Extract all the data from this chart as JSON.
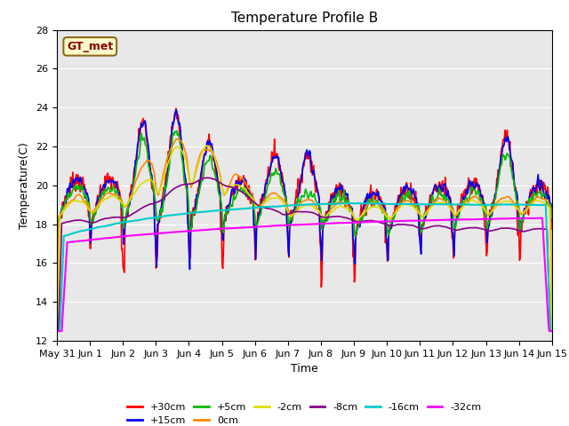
{
  "title": "Temperature Profile B",
  "xlabel": "Time",
  "ylabel": "Temperature(C)",
  "ylim": [
    12,
    28
  ],
  "background_color": "#e8e8e8",
  "gt_met_label": "GT_met",
  "series_info": [
    {
      "label": "+30cm",
      "color": "#ff0000",
      "lw": 1.2
    },
    {
      "label": "+15cm",
      "color": "#0000ee",
      "lw": 1.2
    },
    {
      "label": "+5cm",
      "color": "#00bb00",
      "lw": 1.2
    },
    {
      "label": "0cm",
      "color": "#ff8800",
      "lw": 1.2
    },
    {
      "label": "-2cm",
      "color": "#dddd00",
      "lw": 1.2
    },
    {
      "label": "-8cm",
      "color": "#880088",
      "lw": 1.2
    },
    {
      "label": "-16cm",
      "color": "#00cccc",
      "lw": 1.5
    },
    {
      "label": "-32cm",
      "color": "#ff00ff",
      "lw": 1.5
    }
  ],
  "xtick_labels": [
    "May 31",
    "Jun 1",
    "Jun 2",
    "Jun 3",
    "Jun 4",
    "Jun 5",
    "Jun 6",
    "Jun 7",
    "Jun 8",
    "Jun 9",
    "Jun 10",
    "Jun 11",
    "Jun 12",
    "Jun 13",
    "Jun 14",
    "Jun 15"
  ]
}
